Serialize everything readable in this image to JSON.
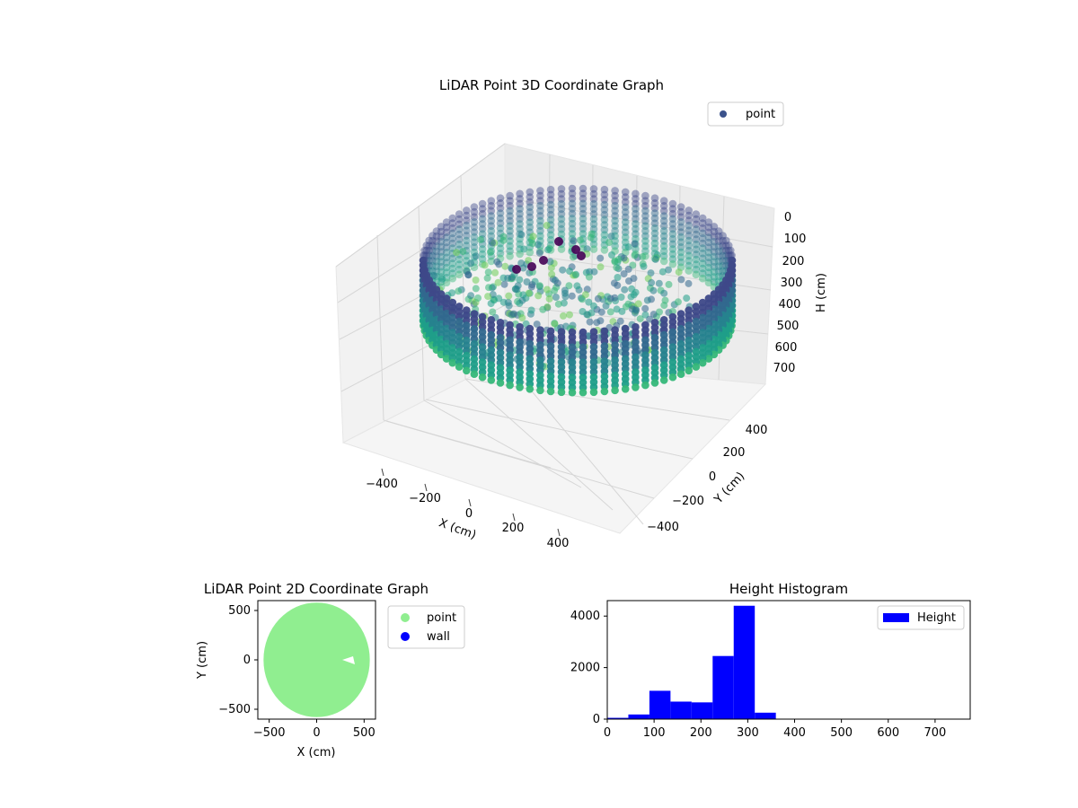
{
  "chart_data": [
    {
      "type": "scatter3d",
      "title": "LiDAR Point 3D Coordinate Graph",
      "xlabel": "X (cm)",
      "ylabel": "Y (cm)",
      "zlabel": "H (cm)",
      "x_ticks": [
        "−400",
        "−200",
        "0",
        "200",
        "400"
      ],
      "y_ticks": [
        "−400",
        "−200",
        "0",
        "200",
        "400"
      ],
      "z_ticks": [
        "0",
        "100",
        "200",
        "300",
        "400",
        "500",
        "600",
        "700"
      ],
      "xlim": [
        -550,
        550
      ],
      "ylim": [
        -550,
        550
      ],
      "zlim": [
        0,
        750
      ],
      "z_inverted": true,
      "colormap": "viridis",
      "grid": true,
      "legend": {
        "position": "top-right",
        "entries": [
          "point"
        ]
      },
      "series": [
        {
          "name": "point",
          "color": "#3b528b",
          "description_shape": "ring wall of radius ~560 cm, heights 220-300 cm, with scattered interior points"
        }
      ]
    },
    {
      "type": "scatter",
      "title": "LiDAR Point 2D Coordinate Graph",
      "xlabel": "X (cm)",
      "ylabel": "Y (cm)",
      "x_ticks": [
        "−500",
        "0",
        "500"
      ],
      "y_ticks": [
        "−500",
        "0",
        "500"
      ],
      "xlim": [
        -620,
        620
      ],
      "ylim": [
        -600,
        600
      ],
      "grid": false,
      "legend": {
        "position": "outside-right",
        "entries": [
          "point",
          "wall"
        ]
      },
      "series": [
        {
          "name": "point",
          "color": "#90ee90",
          "shape": "filled disc of radius ~560 cm centered at (0,0)"
        },
        {
          "name": "wall",
          "color": "#0000ff"
        }
      ]
    },
    {
      "type": "bar",
      "title": "Height Histogram",
      "xlabel": "",
      "ylabel": "",
      "x_ticks": [
        "0",
        "100",
        "200",
        "300",
        "400",
        "500",
        "600",
        "700"
      ],
      "y_ticks": [
        "0",
        "2000",
        "4000"
      ],
      "xlim": [
        0,
        775
      ],
      "ylim": [
        0,
        4600
      ],
      "bin_edges": [
        0,
        45,
        90,
        135,
        180,
        225,
        270,
        315,
        360,
        405,
        450,
        495,
        540,
        585,
        630,
        675,
        720,
        765
      ],
      "values": [
        50,
        180,
        1100,
        680,
        650,
        2450,
        4400,
        250,
        0,
        0,
        0,
        0,
        0,
        0,
        0,
        0,
        0
      ],
      "color": "#0000ff",
      "legend": {
        "position": "top-right",
        "entries": [
          "Height"
        ]
      },
      "series": [
        {
          "name": "Height"
        }
      ]
    }
  ]
}
